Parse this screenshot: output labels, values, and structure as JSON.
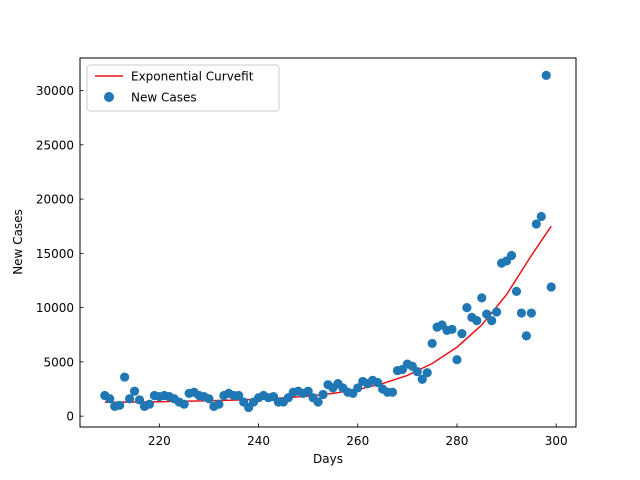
{
  "chart_data": {
    "type": "scatter",
    "title": "",
    "xlabel": "Days",
    "ylabel": "New Cases",
    "xlim": [
      204,
      304
    ],
    "ylim": [
      -1000,
      33000
    ],
    "xticks": [
      220,
      240,
      260,
      280,
      300
    ],
    "yticks": [
      0,
      5000,
      10000,
      15000,
      20000,
      25000,
      30000
    ],
    "grid": false,
    "legend_position": "top-left",
    "colors": {
      "scatter": "#1f77b4",
      "fit": "#e8141a",
      "axes": "#000000"
    },
    "series": [
      {
        "name": "Exponential Curvefit",
        "kind": "line",
        "x": [
          209,
          215,
          220,
          225,
          230,
          235,
          240,
          245,
          250,
          255,
          260,
          265,
          270,
          275,
          280,
          285,
          290,
          295,
          299
        ],
        "y": [
          1280,
          1300,
          1330,
          1370,
          1420,
          1480,
          1560,
          1680,
          1850,
          2100,
          2450,
          3000,
          3750,
          4850,
          6350,
          8400,
          11200,
          14800,
          17500
        ]
      },
      {
        "name": "New Cases",
        "kind": "scatter",
        "x": [
          209,
          210,
          211,
          212,
          213,
          214,
          215,
          216,
          217,
          218,
          219,
          220,
          221,
          222,
          223,
          224,
          225,
          226,
          227,
          228,
          229,
          230,
          231,
          232,
          233,
          234,
          235,
          236,
          237,
          238,
          239,
          240,
          241,
          242,
          243,
          244,
          245,
          246,
          247,
          248,
          249,
          250,
          251,
          252,
          253,
          254,
          255,
          256,
          257,
          258,
          259,
          260,
          261,
          262,
          263,
          264,
          265,
          266,
          267,
          268,
          269,
          270,
          271,
          272,
          273,
          274,
          275,
          276,
          277,
          278,
          279,
          280,
          281,
          282,
          283,
          284,
          285,
          286,
          287,
          288,
          289,
          290,
          291,
          292,
          293,
          294,
          295,
          296,
          297,
          298,
          299
        ],
        "y": [
          1900,
          1600,
          900,
          1000,
          3600,
          1600,
          2300,
          1500,
          900,
          1100,
          1900,
          1800,
          1900,
          1800,
          1600,
          1300,
          1100,
          2100,
          2200,
          1900,
          1800,
          1600,
          900,
          1100,
          1900,
          2100,
          1900,
          1900,
          1300,
          800,
          1300,
          1700,
          1900,
          1700,
          1800,
          1300,
          1300,
          1700,
          2200,
          2300,
          2100,
          2300,
          1700,
          1300,
          2000,
          2900,
          2600,
          3000,
          2600,
          2200,
          2100,
          2600,
          3200,
          3000,
          3300,
          3100,
          2500,
          2200,
          2200,
          4200,
          4300,
          4800,
          4600,
          4100,
          3400,
          4000,
          6700,
          8200,
          8400,
          7900,
          8000,
          5200,
          7600,
          10000,
          9100,
          8800,
          10900,
          9400,
          8800,
          9600,
          14100,
          14300,
          14800,
          11500,
          9500,
          7400,
          9500,
          17700,
          18400,
          31400,
          11900
        ]
      }
    ]
  }
}
